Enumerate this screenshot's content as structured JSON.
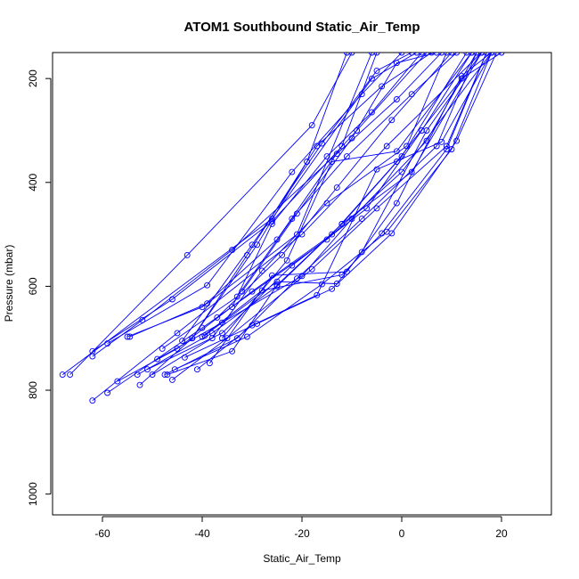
{
  "chart_data": {
    "type": "line",
    "title": "ATOM1 Southbound Static_Air_Temp",
    "xlabel": "Static_Air_Temp",
    "ylabel": "Pressure (mbar)",
    "xlim": [
      -70,
      30
    ],
    "ylim": [
      1040,
      150
    ],
    "y_reversed": true,
    "grid": false,
    "legend": "none",
    "xticks": [
      -60,
      -40,
      -20,
      0,
      20
    ],
    "yticks": [
      200,
      400,
      600,
      800,
      1000
    ],
    "color": "#0000ff",
    "marker": "open-circle",
    "series": [
      {
        "points": [
          [
            -68,
            770
          ],
          [
            -26,
            470
          ],
          [
            -6,
            200
          ],
          [
            3,
            150
          ]
        ]
      },
      {
        "points": [
          [
            -66.5,
            770
          ],
          [
            -43,
            540
          ],
          [
            -18,
            290
          ],
          [
            -10,
            150
          ]
        ]
      },
      {
        "points": [
          [
            -62,
            820
          ],
          [
            -45,
            690
          ],
          [
            -20,
            500
          ],
          [
            -3,
            330
          ],
          [
            16,
            150
          ]
        ]
      },
      {
        "points": [
          [
            -59,
            805
          ],
          [
            -40,
            680
          ],
          [
            -15,
            510
          ],
          [
            0,
            380
          ],
          [
            18,
            150
          ]
        ]
      },
      {
        "points": [
          [
            -62,
            735
          ],
          [
            -52,
            665
          ],
          [
            -34,
            530
          ],
          [
            -13,
            345
          ],
          [
            -1,
            240
          ],
          [
            8,
            150
          ]
        ]
      },
      {
        "points": [
          [
            -62,
            725
          ],
          [
            -46,
            625
          ],
          [
            -26,
            475
          ],
          [
            -9,
            300
          ],
          [
            5,
            150
          ]
        ]
      },
      {
        "points": [
          [
            -59,
            710
          ],
          [
            -39,
            598
          ],
          [
            -22,
            380
          ],
          [
            -8,
            230
          ],
          [
            0,
            150
          ]
        ]
      },
      {
        "points": [
          [
            -55,
            697
          ],
          [
            -40,
            640
          ],
          [
            -25,
            510
          ],
          [
            -12,
            330
          ],
          [
            -5,
            150
          ]
        ]
      },
      {
        "points": [
          [
            -54.5,
            697
          ],
          [
            -39,
            633
          ],
          [
            -21,
            500
          ],
          [
            -6,
            150
          ]
        ]
      },
      {
        "points": [
          [
            -57,
            783
          ],
          [
            -45,
            720
          ],
          [
            -30,
            610
          ],
          [
            -14,
            500
          ],
          [
            -1,
            360
          ],
          [
            12,
            200
          ],
          [
            20,
            150
          ]
        ]
      },
      {
        "points": [
          [
            -53,
            770
          ],
          [
            -38,
            690
          ],
          [
            -25,
            600
          ],
          [
            -12,
            480
          ],
          [
            0,
            350
          ],
          [
            13,
            150
          ]
        ]
      },
      {
        "points": [
          [
            -52.5,
            790
          ],
          [
            -42,
            700
          ],
          [
            -29,
            520
          ],
          [
            -19,
            360
          ],
          [
            -11,
            150
          ]
        ]
      },
      {
        "points": [
          [
            -51,
            760
          ],
          [
            -36,
            690
          ],
          [
            -22,
            560
          ],
          [
            -7,
            450
          ],
          [
            4,
            300
          ],
          [
            14,
            150
          ]
        ]
      },
      {
        "points": [
          [
            -50,
            770
          ],
          [
            -38,
            700
          ],
          [
            -28,
            570
          ],
          [
            -15,
            440
          ],
          [
            1,
            330
          ],
          [
            9,
            150
          ]
        ]
      },
      {
        "points": [
          [
            -49,
            740
          ],
          [
            -36,
            670
          ],
          [
            -20,
            580
          ],
          [
            -10,
            470
          ],
          [
            5,
            320
          ],
          [
            15,
            150
          ]
        ]
      },
      {
        "points": [
          [
            -47.5,
            770
          ],
          [
            -33,
            700
          ],
          [
            -21,
            585
          ],
          [
            -8,
            470
          ],
          [
            7,
            330
          ],
          [
            15,
            150
          ]
        ]
      },
      {
        "points": [
          [
            -47,
            770
          ],
          [
            -34,
            725
          ],
          [
            -25,
            598
          ],
          [
            -12,
            480
          ],
          [
            2,
            380
          ],
          [
            16,
            150
          ]
        ]
      },
      {
        "points": [
          [
            -46,
            780
          ],
          [
            -35,
            700
          ],
          [
            -18,
            567
          ],
          [
            -5,
            450
          ],
          [
            9,
            330
          ],
          [
            17,
            150
          ]
        ]
      },
      {
        "points": [
          [
            -45.5,
            760
          ],
          [
            -31,
            697
          ],
          [
            -16,
            596
          ],
          [
            -3,
            495
          ],
          [
            10,
            336
          ],
          [
            18,
            150
          ]
        ]
      },
      {
        "points": [
          [
            -43.5,
            737
          ],
          [
            -29,
            672
          ],
          [
            -14,
            605
          ],
          [
            -2,
            498
          ],
          [
            11,
            320
          ],
          [
            19,
            150
          ]
        ]
      },
      {
        "points": [
          [
            -41,
            760
          ],
          [
            -30,
            675
          ],
          [
            -17,
            617
          ],
          [
            -5,
            375
          ],
          [
            8,
            322
          ],
          [
            18,
            150
          ]
        ]
      },
      {
        "points": [
          [
            -39.5,
            695
          ],
          [
            -25,
            591
          ],
          [
            -13,
            595
          ],
          [
            -8,
            534
          ],
          [
            5,
            300
          ],
          [
            16,
            150
          ]
        ]
      },
      {
        "points": [
          [
            -38.5,
            748
          ],
          [
            -26,
            579
          ],
          [
            -11,
            572
          ],
          [
            -1,
            440
          ],
          [
            12,
            195
          ],
          [
            18,
            150
          ]
        ]
      },
      {
        "points": [
          [
            -40,
            697
          ],
          [
            -28,
            608
          ],
          [
            -12,
            578
          ],
          [
            -4,
            498
          ],
          [
            9,
            336
          ],
          [
            17,
            150
          ]
        ]
      },
      {
        "points": [
          [
            -42,
            700
          ],
          [
            -31,
            540
          ],
          [
            -17,
            330
          ],
          [
            -4,
            215
          ],
          [
            6,
            150
          ]
        ]
      },
      {
        "points": [
          [
            -44,
            705
          ],
          [
            -30,
            520
          ],
          [
            -16,
            325
          ],
          [
            -5,
            185
          ],
          [
            2,
            150
          ]
        ]
      },
      {
        "points": [
          [
            -36,
            700
          ],
          [
            -23,
            550
          ],
          [
            -14,
            360
          ],
          [
            -1,
            340
          ],
          [
            14,
            150
          ]
        ]
      },
      {
        "points": [
          [
            -34,
            640
          ],
          [
            -26,
            480
          ],
          [
            -15,
            350
          ],
          [
            -6,
            265
          ],
          [
            4,
            150
          ]
        ]
      },
      {
        "points": [
          [
            -32,
            610
          ],
          [
            -21,
            460
          ],
          [
            -10,
            315
          ],
          [
            -1,
            170
          ],
          [
            7,
            150
          ]
        ]
      },
      {
        "points": [
          [
            -37,
            660
          ],
          [
            -24,
            540
          ],
          [
            -13,
            410
          ],
          [
            -2,
            280
          ],
          [
            10,
            150
          ]
        ]
      },
      {
        "points": [
          [
            -48,
            720
          ],
          [
            -33,
            620
          ],
          [
            -22,
            470
          ],
          [
            -11,
            350
          ],
          [
            2,
            230
          ],
          [
            11,
            150
          ]
        ]
      }
    ]
  }
}
